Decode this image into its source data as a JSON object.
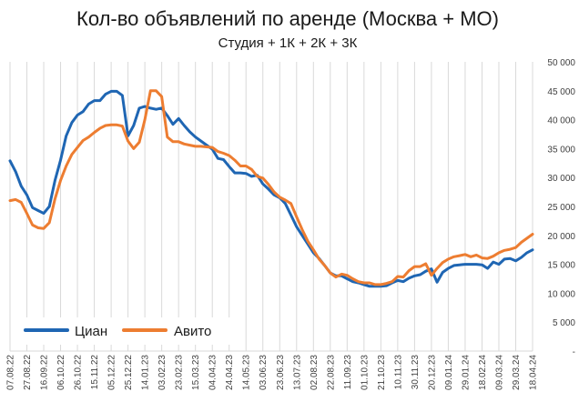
{
  "chart_data": {
    "type": "line",
    "title": "Кол-во объявлений по аренде (Москва + МО)",
    "subtitle": "Студия + 1К + 2К + 3К",
    "ylim": [
      0,
      50000
    ],
    "ytick_values": [
      0,
      5000,
      10000,
      15000,
      20000,
      25000,
      30000,
      35000,
      40000,
      45000,
      50000
    ],
    "ytick_labels": [
      "-",
      "5 000",
      "10 000",
      "15 000",
      "20 000",
      "25 000",
      "30 000",
      "35 000",
      "40 000",
      "45 000",
      "50 000"
    ],
    "x_tick_labels": [
      "07.08.22",
      "27.08.22",
      "16.09.22",
      "06.10.22",
      "26.10.22",
      "15.11.22",
      "05.12.22",
      "25.12.22",
      "14.01.23",
      "03.02.23",
      "23.02.23",
      "15.03.23",
      "04.04.23",
      "24.04.23",
      "14.05.23",
      "03.06.23",
      "23.06.23",
      "13.07.23",
      "02.08.23",
      "22.08.23",
      "11.09.23",
      "01.10.23",
      "21.10.23",
      "10.11.23",
      "30.11.23",
      "20.12.23",
      "09.01.24",
      "29.01.24",
      "18.02.24",
      "09.03.24",
      "29.03.24",
      "18.04.24"
    ],
    "grid": "vertical",
    "legend_position": "bottom-left",
    "series": [
      {
        "name": "Циан",
        "color": "#1f66b3",
        "values": [
          32900,
          31000,
          28500,
          27000,
          24800,
          24300,
          23800,
          25000,
          29500,
          33000,
          37200,
          39500,
          40800,
          41400,
          42700,
          43300,
          43300,
          44400,
          44900,
          44900,
          44200,
          37200,
          39000,
          42000,
          42300,
          42000,
          41800,
          42000,
          40700,
          39200,
          40200,
          39000,
          37900,
          37000,
          36300,
          35600,
          34900,
          33300,
          33100,
          31900,
          30800,
          30800,
          30700,
          30200,
          30400,
          28900,
          28000,
          27000,
          26500,
          25500,
          23500,
          21500,
          20000,
          18500,
          17000,
          16000,
          14800,
          13500,
          13000,
          13000,
          12500,
          12000,
          11800,
          11500,
          11200,
          11200,
          11200,
          11300,
          11800,
          12200,
          12000,
          12600,
          13000,
          13200,
          13800,
          14200,
          11900,
          13600,
          14300,
          14800,
          14900,
          15000,
          15000,
          15000,
          14900,
          14300,
          15400,
          15000,
          15900,
          16000,
          15600,
          16200,
          17000,
          17500
        ]
      },
      {
        "name": "Авито",
        "color": "#ed7d31",
        "values": [
          26000,
          26200,
          25700,
          23800,
          21800,
          21300,
          21200,
          22200,
          26300,
          29500,
          32000,
          34000,
          35200,
          36400,
          37000,
          37800,
          38500,
          39000,
          39100,
          39100,
          38900,
          36300,
          35000,
          36100,
          40000,
          45000,
          45000,
          44000,
          37000,
          36200,
          36200,
          35800,
          35600,
          35400,
          35400,
          35300,
          35200,
          34500,
          34200,
          33800,
          33000,
          32000,
          32000,
          31400,
          30200,
          29900,
          28800,
          27500,
          26600,
          26100,
          25500,
          23200,
          21000,
          19000,
          17500,
          15900,
          14800,
          13500,
          12800,
          13300,
          13100,
          12500,
          12000,
          11800,
          11800,
          11500,
          11500,
          11700,
          12000,
          12900,
          12800,
          13900,
          14600,
          14600,
          15100,
          13100,
          14300,
          15300,
          15900,
          16300,
          16500,
          16700,
          16300,
          16600,
          16100,
          16000,
          16400,
          17000,
          17400,
          17600,
          17900,
          18800,
          19500,
          20200
        ]
      }
    ]
  }
}
